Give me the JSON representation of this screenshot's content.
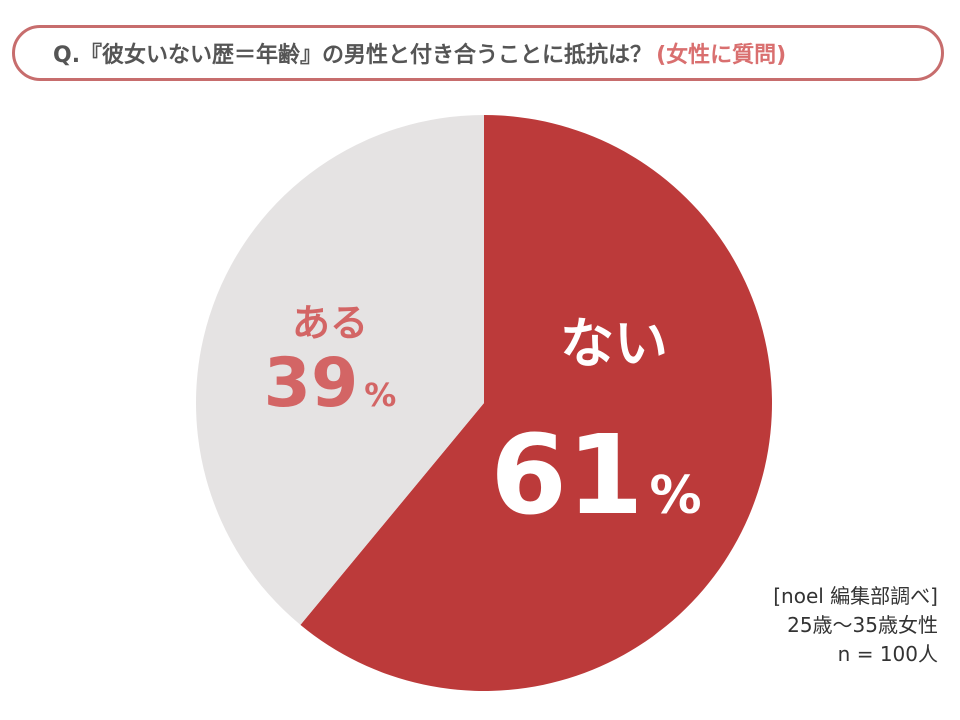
{
  "header": {
    "question": "Q.『彼女いない歴＝年齢』の男性と付き合うことに抵抗は？",
    "subtitle": "(女性に質問)"
  },
  "chart_data": {
    "type": "pie",
    "categories": [
      "ない",
      "ある"
    ],
    "values": [
      61,
      39
    ],
    "unit": "%",
    "colors": [
      "#bc3a3a",
      "#e5e3e3"
    ],
    "label_colors": [
      "#ffffff",
      "#d36565"
    ]
  },
  "source": {
    "line1": "[noel 編集部調べ]",
    "line2": "25歳〜35歳女性",
    "line3": "n = 100人"
  }
}
